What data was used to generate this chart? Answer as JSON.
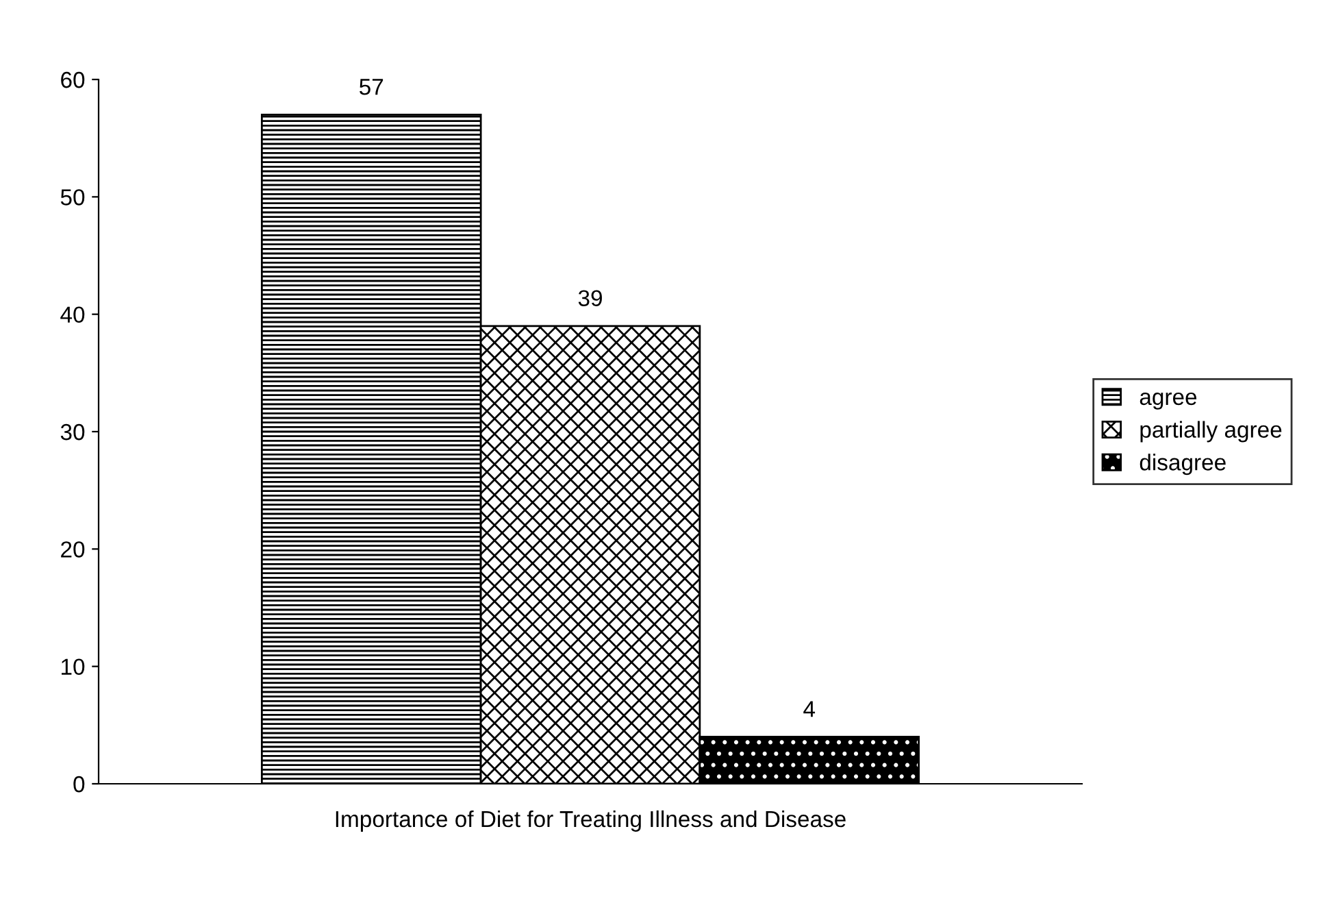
{
  "chart_data": {
    "type": "bar",
    "categories": [
      "Importance of Diet for Treating Illness and Disease"
    ],
    "series": [
      {
        "name": "agree",
        "color": "#000000",
        "values": [
          57
        ]
      },
      {
        "name": "partially agree",
        "color": "#000000",
        "values": [
          39
        ]
      },
      {
        "name": "disagree",
        "color": "#000000",
        "values": [
          4
        ]
      }
    ],
    "ylim": [
      0,
      60
    ],
    "yticks": [
      0,
      10,
      20,
      30,
      40,
      50,
      60
    ],
    "grid": false,
    "legend": "right",
    "data_labels": true
  }
}
